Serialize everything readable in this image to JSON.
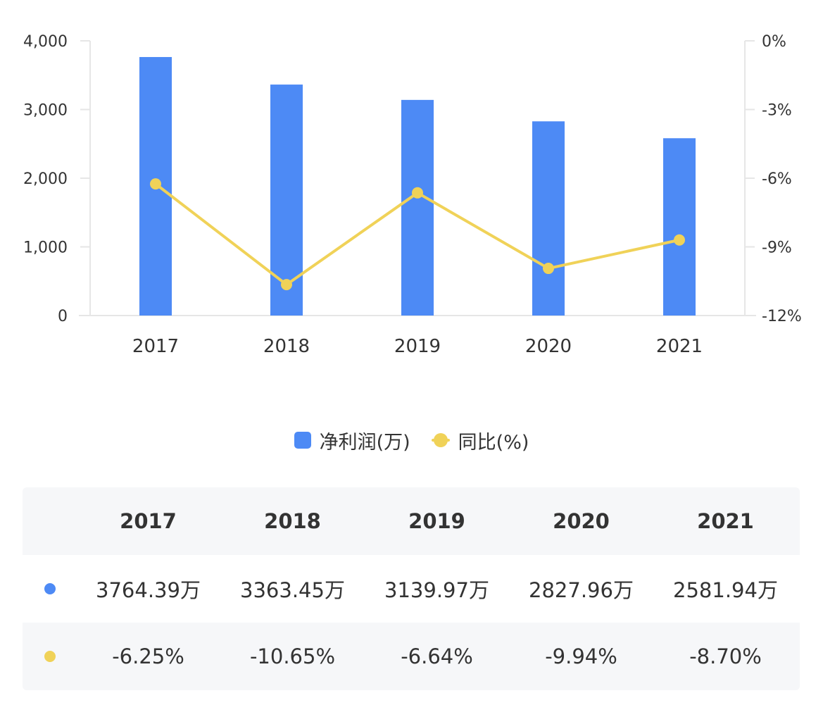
{
  "chart_data": {
    "type": "bar",
    "categories": [
      "2017",
      "2018",
      "2019",
      "2020",
      "2021"
    ],
    "series": [
      {
        "name": "净利润(万)",
        "type": "bar",
        "axis": "left",
        "color": "#4d8af5",
        "values": [
          3764.39,
          3363.45,
          3139.97,
          2827.96,
          2581.94
        ]
      },
      {
        "name": "同比(%)",
        "type": "line",
        "axis": "right",
        "color": "#f0d258",
        "values": [
          -6.25,
          -10.65,
          -6.64,
          -9.94,
          -8.7
        ]
      }
    ],
    "y_left": {
      "min": 0,
      "max": 4000,
      "ticks": [
        "0",
        "1,000",
        "2,000",
        "3,000",
        "4,000"
      ],
      "tick_values": [
        0,
        1000,
        2000,
        3000,
        4000
      ]
    },
    "y_right": {
      "min": -12,
      "max": 0,
      "ticks": [
        "-12%",
        "-9%",
        "-6%",
        "-3%",
        "0%"
      ],
      "tick_values": [
        -12,
        -9,
        -6,
        -3,
        0
      ]
    },
    "grid": false,
    "legend": "bottom-center"
  },
  "legend": [
    {
      "label": "净利润(万)",
      "color": "#4d8af5"
    },
    {
      "label": "同比(%)",
      "color": "#f0d258"
    }
  ],
  "table": {
    "header": [
      "2017",
      "2018",
      "2019",
      "2020",
      "2021"
    ],
    "profit_row": [
      "3764.39万",
      "3363.45万",
      "3139.97万",
      "2827.96万",
      "2581.94万"
    ],
    "yoy_row": [
      "-6.25%",
      "-10.65%",
      "-6.64%",
      "-9.94%",
      "-8.70%"
    ]
  }
}
